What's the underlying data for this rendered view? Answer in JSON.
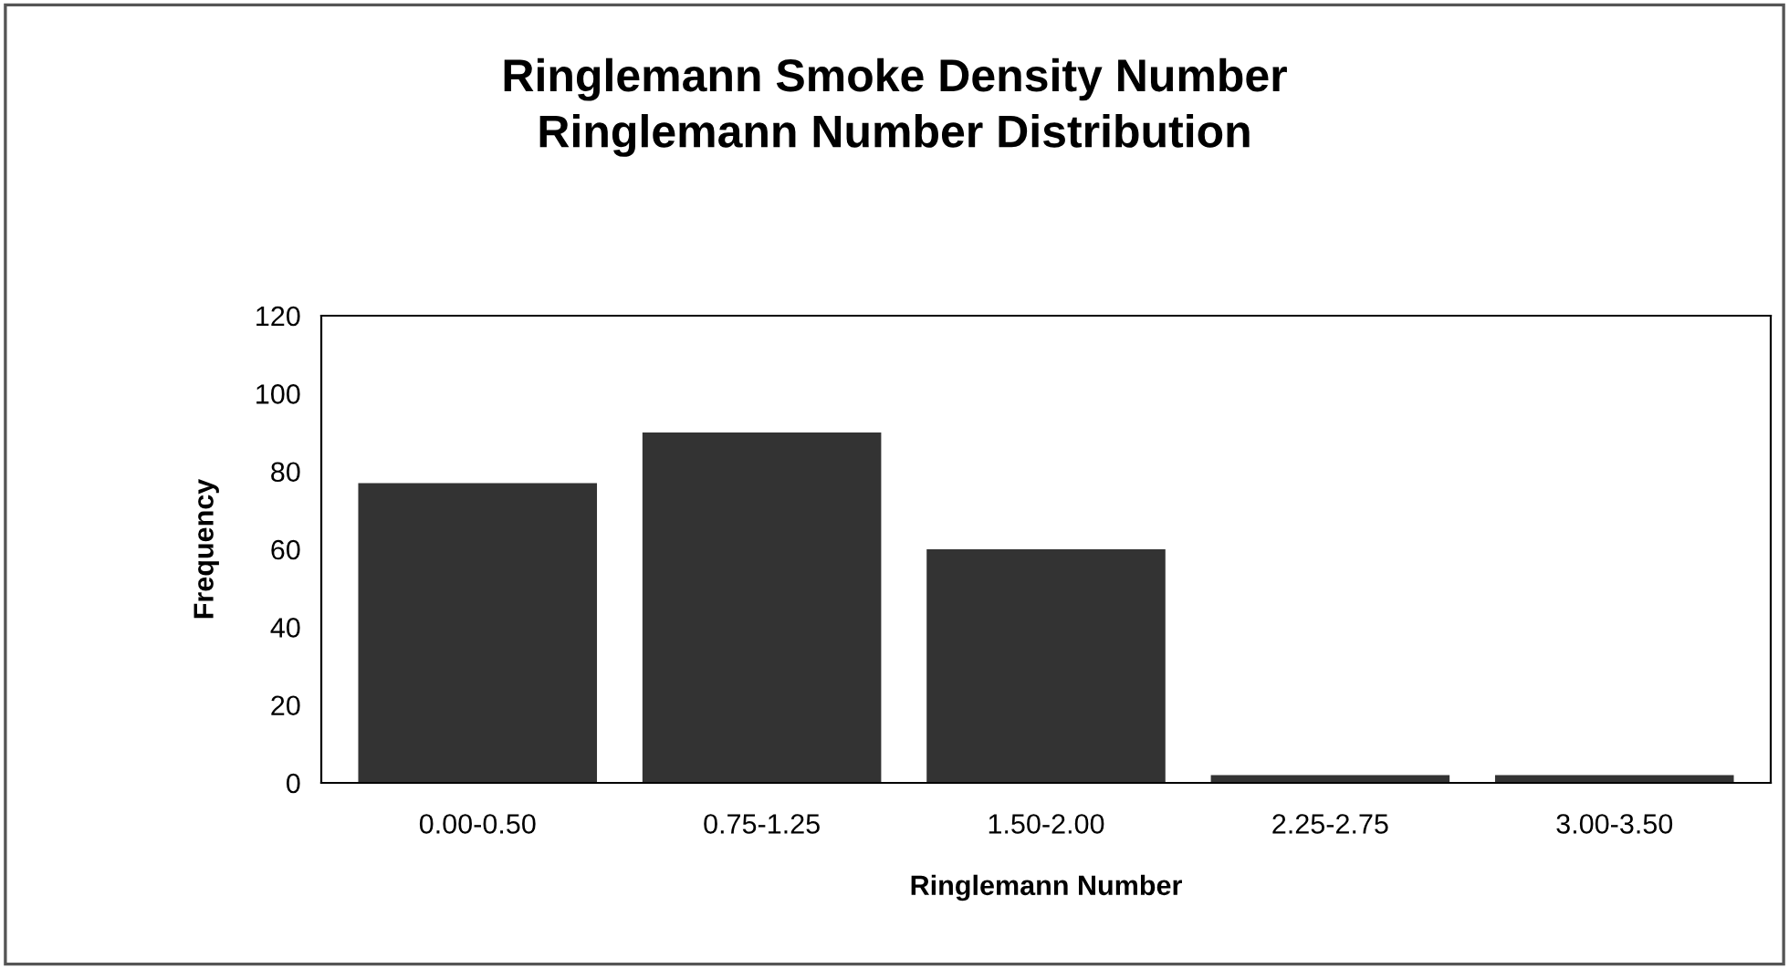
{
  "chart_data": {
    "type": "bar",
    "title": "Ringlemann Smoke Density Number\nRinglemann Number Distribution",
    "xlabel": "Ringlemann Number",
    "ylabel": "Frequency",
    "categories": [
      "0.00-0.50",
      "0.75-1.25",
      "1.50-2.00",
      "2.25-2.75",
      "3.00-3.50"
    ],
    "values": [
      77,
      90,
      60,
      2,
      2
    ],
    "color": "#333333",
    "ylim": [
      0,
      120
    ],
    "yticks": [
      0,
      20,
      40,
      60,
      80,
      100,
      120
    ],
    "grid": false
  }
}
